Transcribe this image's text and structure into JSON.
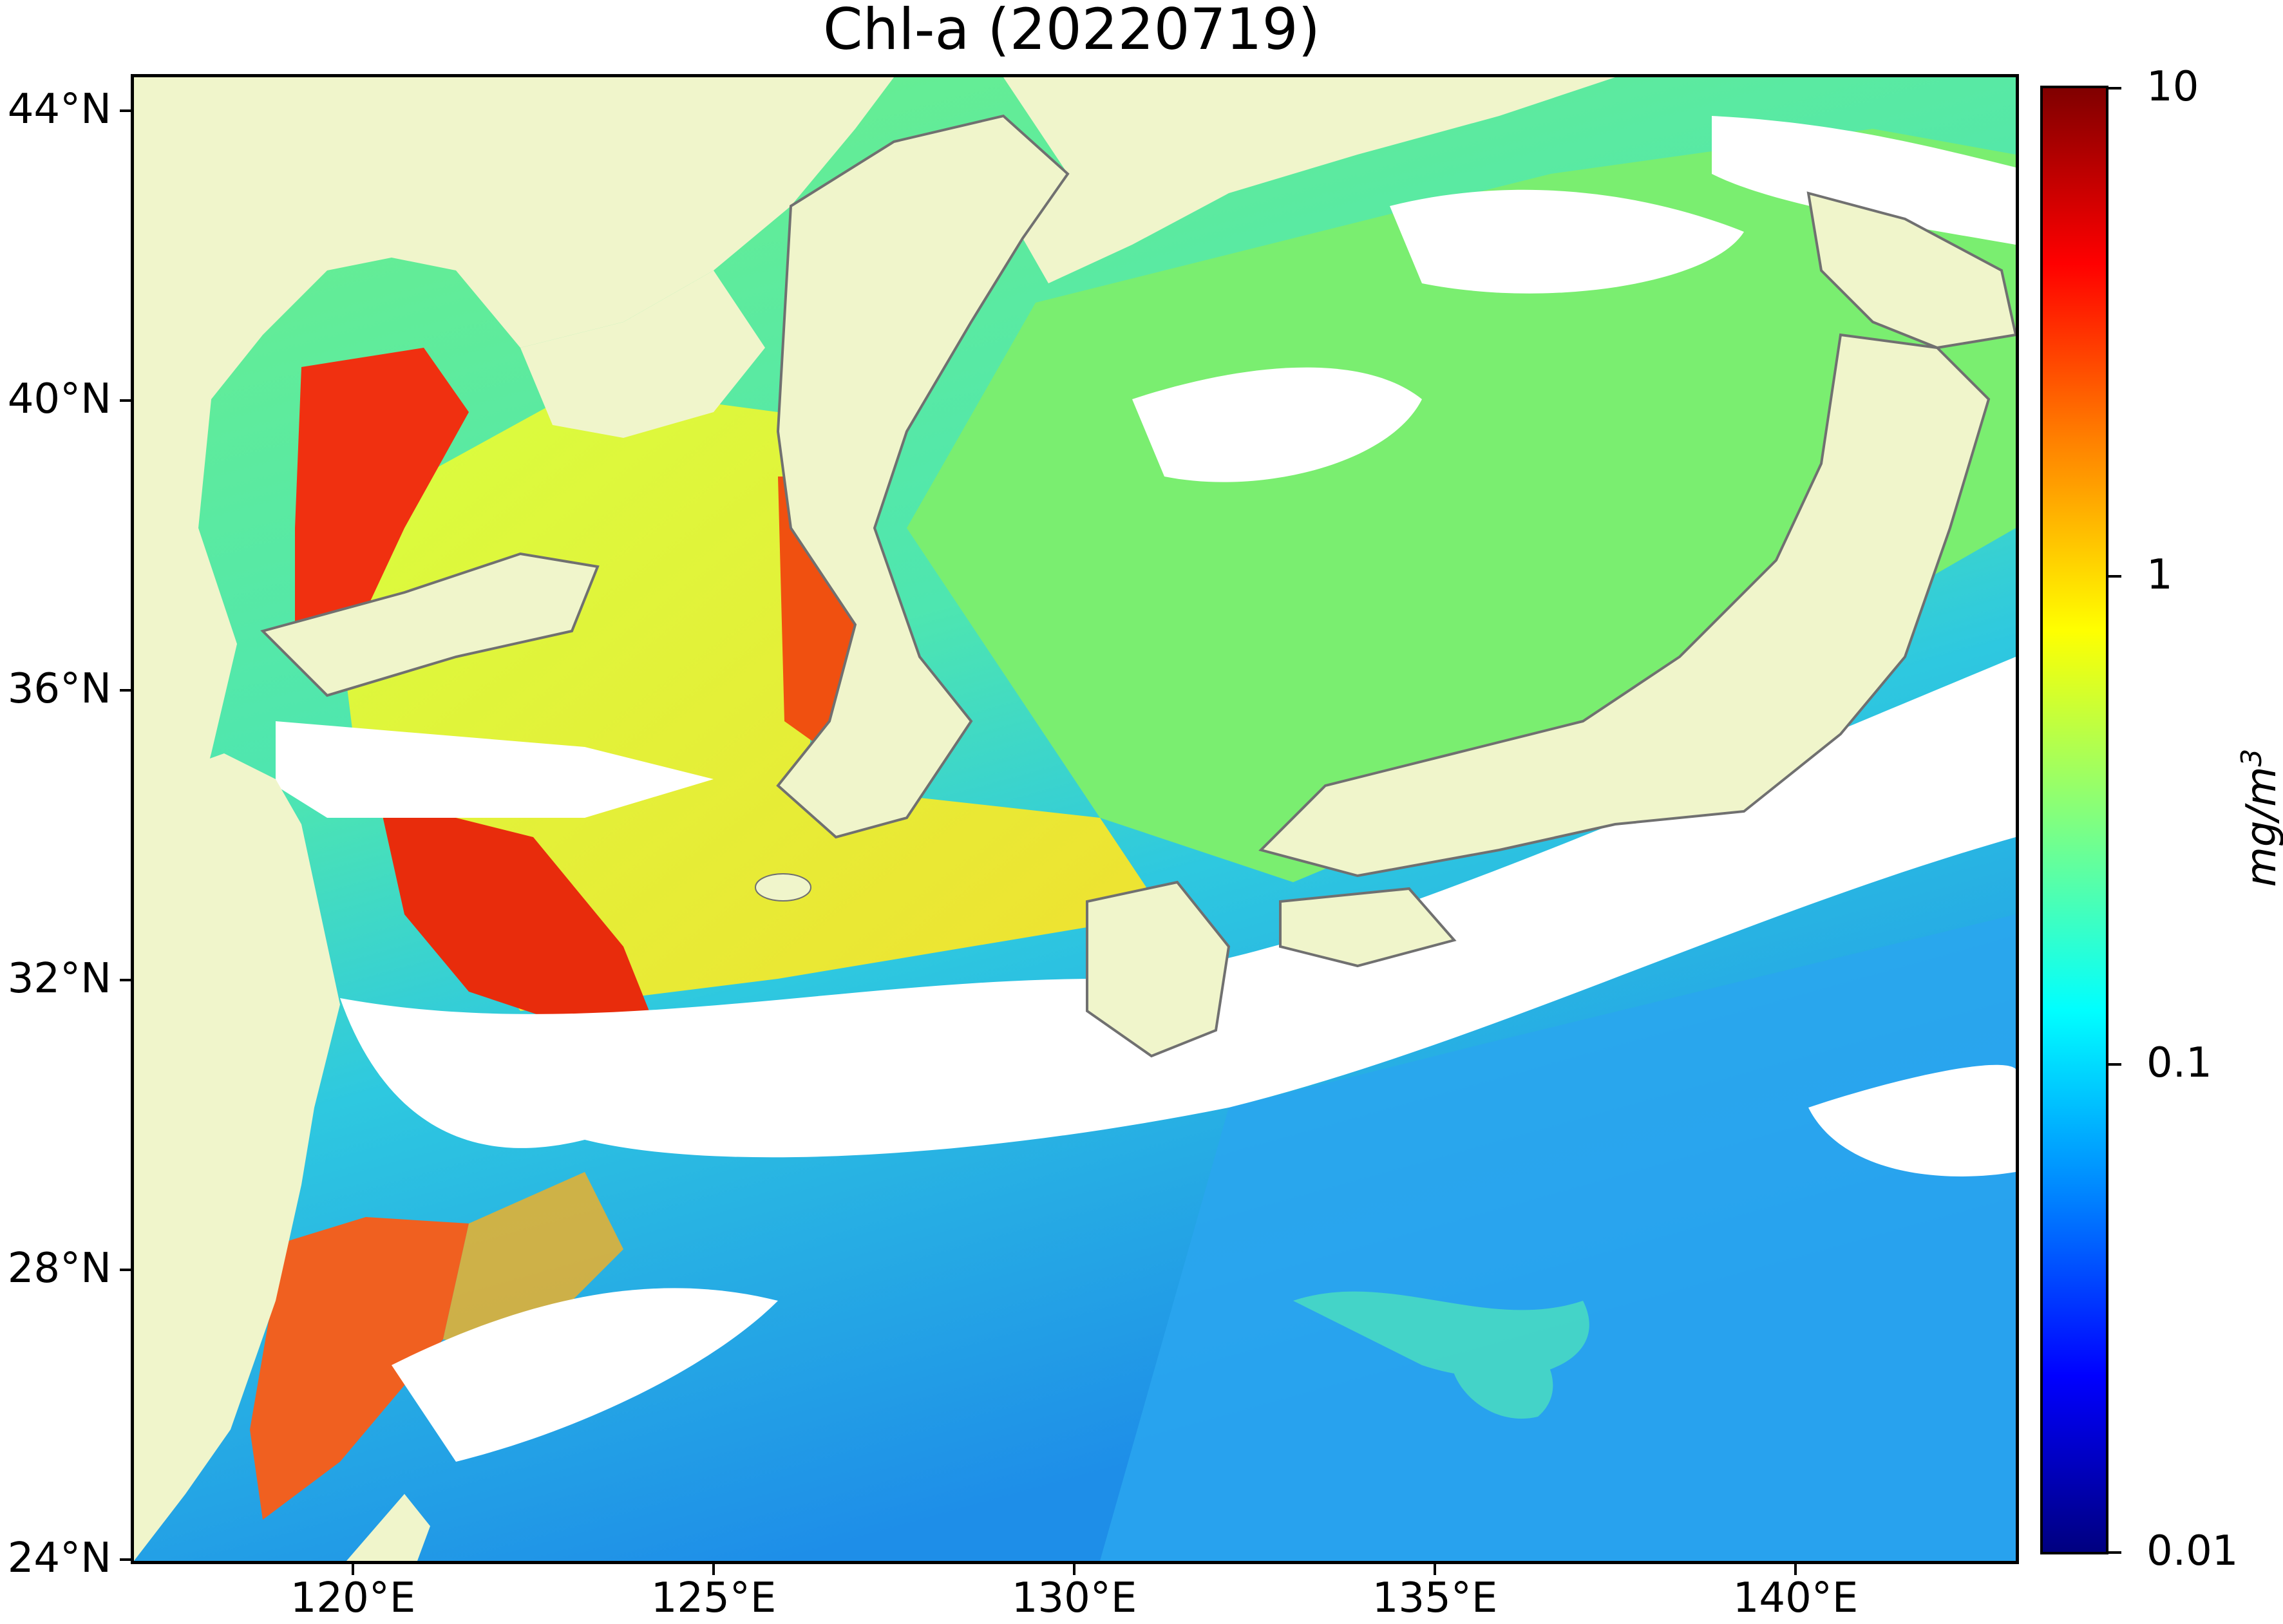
{
  "title": "Chl-a (20220719)",
  "map": {
    "lat_ticks": [
      "44°N",
      "40°N",
      "36°N",
      "32°N",
      "28°N",
      "24°N"
    ],
    "lon_ticks": [
      "120°E",
      "125°E",
      "130°E",
      "135°E",
      "140°E"
    ],
    "lon_range": [
      116.8,
      143.0
    ],
    "lat_range": [
      24.0,
      44.5
    ],
    "land_color": "#f0f5cb",
    "coast_color": "#707070",
    "cloud_color": "#ffffff"
  },
  "colorbar": {
    "ticks": [
      "10",
      "1",
      "0.1",
      "0.01"
    ],
    "unit": "mg/m",
    "unit_sup": "3",
    "scale": "log",
    "colormap": "jet"
  }
}
